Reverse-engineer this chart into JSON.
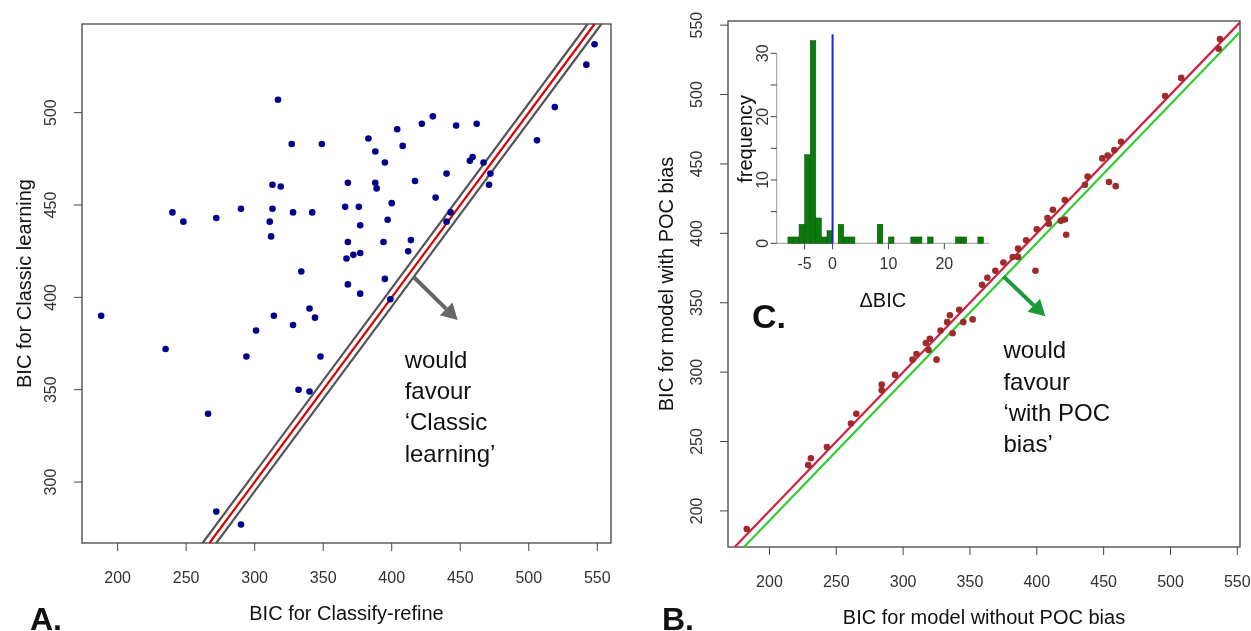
{
  "chart_data": [
    {
      "type": "scatter",
      "xlabel": "BIC for Classify-refine",
      "ylabel": "BIC for Classic learning",
      "xlim": [
        174,
        560
      ],
      "ylim": [
        267,
        548
      ],
      "xticks": [
        200,
        250,
        300,
        350,
        400,
        450,
        500,
        550
      ],
      "yticks": [
        300,
        350,
        400,
        450,
        500
      ],
      "annotations": [
        "A.",
        {
          "text": "would\nfavour\n‘Classic\nlearning’",
          "x": 416,
          "y": 411
        }
      ],
      "series": [
        {
          "type": "line",
          "color": "#555555",
          "x": [
            262,
            543
          ],
          "values": [
            267,
            548
          ]
        },
        {
          "type": "line",
          "color": "#555555",
          "x": [
            272,
            553
          ],
          "values": [
            267,
            548
          ]
        },
        {
          "type": "line",
          "color": "#dd0000",
          "x": [
            267,
            548
          ],
          "values": [
            267,
            548
          ]
        },
        {
          "type": "scatter",
          "color": "#00008b",
          "x": [
            317,
            327,
            349,
            383,
            404,
            422,
            430,
            447,
            462,
            388,
            408,
            395,
            459,
            457,
            467,
            440,
            472,
            471,
            519,
            506,
            542,
            548,
            313,
            319,
            368,
            389,
            388,
            417,
            432,
            240,
            248,
            272,
            290,
            313,
            328,
            342,
            311,
            366,
            376,
            400,
            443,
            440,
            312,
            377,
            397,
            368,
            394,
            414,
            412,
            367,
            372,
            377,
            334,
            368,
            395,
            377,
            399,
            188,
            314,
            340,
            344,
            328,
            301,
            235,
            294,
            348,
            332,
            340,
            266,
            272,
            290
          ],
          "values": [
            507,
            483,
            483,
            486,
            491,
            494,
            498,
            493,
            494,
            479,
            482,
            473,
            476,
            474,
            473,
            467,
            467,
            461,
            503,
            485,
            526,
            537,
            461,
            460,
            462,
            459,
            462,
            463,
            454,
            446,
            441,
            443,
            448,
            448,
            446,
            446,
            441,
            449,
            449,
            451,
            446,
            441,
            433,
            439,
            442,
            430,
            430,
            431,
            425,
            421,
            423,
            424,
            414,
            407,
            410,
            402,
            399,
            390,
            390,
            394,
            389,
            385,
            382,
            372,
            368,
            368,
            350,
            349,
            337,
            284,
            277
          ]
        }
      ]
    },
    {
      "type": "scatter",
      "xlabel": "BIC for model without POC bias",
      "ylabel": "BIC for model with POC bias",
      "xlim": [
        169,
        552
      ],
      "ylim": [
        174,
        553
      ],
      "xticks": [
        200,
        250,
        300,
        350,
        400,
        450,
        500,
        550
      ],
      "yticks": [
        200,
        250,
        300,
        350,
        400,
        450,
        500,
        550
      ],
      "annotations": [
        "B.",
        {
          "text": "would\nfavour\n‘with POC\nbias’",
          "x": 375,
          "y": 369
        }
      ],
      "series": [
        {
          "type": "line",
          "color": "#33cc33",
          "x": [
            181,
            552
          ],
          "values": [
            174,
            545
          ]
        },
        {
          "type": "line",
          "color": "#cc2244",
          "x": [
            174,
            552
          ],
          "values": [
            174,
            552
          ]
        },
        {
          "type": "scatter",
          "color": "#9e2a2b",
          "x": [
            537,
            536,
            508,
            496,
            463,
            458,
            453,
            449,
            454,
            459,
            438,
            436,
            421,
            421,
            418,
            422,
            412,
            408,
            409,
            400,
            399,
            392,
            386,
            386,
            382,
            375,
            369,
            363,
            359,
            342,
            335,
            333,
            328,
            320,
            317,
            319,
            325,
            310,
            307,
            294,
            284,
            284,
            265,
            261,
            243,
            231,
            229,
            183,
            337,
            345,
            352
          ],
          "values": [
            540,
            533,
            512,
            499,
            466,
            460,
            456,
            454,
            437,
            434,
            441,
            435,
            424,
            410,
            409,
            399,
            417,
            411,
            407,
            403,
            373,
            395,
            389,
            383,
            383,
            379,
            373,
            368,
            363,
            345,
            341,
            336,
            330,
            324,
            321,
            316,
            309,
            313,
            309,
            298,
            291,
            287,
            270,
            263,
            246,
            238,
            233,
            187,
            328,
            336,
            338
          ]
        }
      ]
    },
    {
      "type": "histogram",
      "xlabel": "ΔBIC",
      "ylabel": "frequency",
      "xlim": [
        -10,
        28
      ],
      "ylim": [
        0,
        33
      ],
      "xticks": [
        -5,
        0,
        10,
        20
      ],
      "yticks": [
        0,
        {
          "value": 5,
          "label": null
        },
        10,
        {
          "value": 15,
          "label": null
        },
        20,
        {
          "value": 25,
          "label": null
        },
        30
      ],
      "color": "#0a7a0a",
      "annotations": [
        "C."
      ],
      "bins": [
        -8,
        -7,
        -6,
        -5,
        -4,
        -3,
        -2,
        -1,
        0,
        1,
        2,
        3,
        4,
        5,
        6,
        7,
        8,
        9,
        10,
        11,
        12,
        13,
        14,
        15,
        16,
        17,
        18,
        19,
        20,
        21,
        22,
        23,
        24,
        25,
        26,
        27
      ],
      "values": [
        1,
        1,
        3,
        14,
        32,
        4,
        1,
        2,
        0,
        3,
        1,
        1,
        0,
        0,
        0,
        0,
        3,
        0,
        1,
        0,
        0,
        0,
        1,
        1,
        0,
        1,
        0,
        0,
        0,
        0,
        1,
        1,
        0,
        0,
        1
      ],
      "ref_lines": [
        {
          "axis": "x",
          "value": 0,
          "color": "#2222cc"
        }
      ]
    }
  ]
}
